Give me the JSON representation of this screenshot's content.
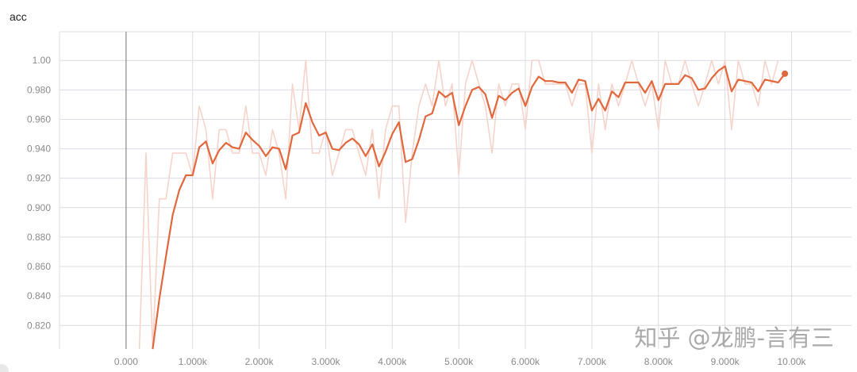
{
  "chart_data": {
    "type": "line",
    "title": "acc",
    "xlabel": "",
    "ylabel": "",
    "xlim": [
      -1000,
      10900
    ],
    "ylim": [
      0.804,
      1.0195
    ],
    "grid": true,
    "legend": "none",
    "x_ticks": [
      0,
      1000,
      2000,
      3000,
      4000,
      5000,
      6000,
      7000,
      8000,
      9000,
      10000
    ],
    "x_tick_labels": [
      "0.000",
      "1.000k",
      "2.000k",
      "3.000k",
      "4.000k",
      "5.000k",
      "6.000k",
      "7.000k",
      "8.000k",
      "9.000k",
      "10.00k"
    ],
    "y_ticks": [
      0.82,
      0.84,
      0.86,
      0.88,
      0.9,
      0.92,
      0.94,
      0.96,
      0.98,
      1.0
    ],
    "y_tick_labels": [
      "0.820",
      "0.840",
      "0.860",
      "0.880",
      "0.900",
      "0.920",
      "0.940",
      "0.960",
      "0.980",
      "1.00"
    ],
    "colors": {
      "smoothed": "#e0683c",
      "raw": "#f6d3cb",
      "grid": "#dcdce4",
      "axis": "#888888"
    },
    "series": [
      {
        "role": "raw",
        "x": [
          200,
          300,
          400,
          500,
          600,
          700,
          800,
          900,
          1000,
          1100,
          1200,
          1300,
          1400,
          1500,
          1600,
          1700,
          1800,
          1900,
          2000,
          2100,
          2200,
          2300,
          2400,
          2500,
          2600,
          2700,
          2800,
          2900,
          3000,
          3100,
          3200,
          3300,
          3400,
          3500,
          3600,
          3700,
          3800,
          3900,
          4000,
          4100,
          4200,
          4300,
          4400,
          4500,
          4600,
          4700,
          4800,
          4900,
          5000,
          5100,
          5200,
          5300,
          5400,
          5500,
          5600,
          5700,
          5800,
          5900,
          6000,
          6100,
          6200,
          6300,
          6400,
          6500,
          6600,
          6700,
          6800,
          6900,
          7000,
          7100,
          7200,
          7300,
          7400,
          7500,
          7600,
          7700,
          7800,
          7900,
          8000,
          8100,
          8200,
          8300,
          8400,
          8500,
          8600,
          8700,
          8800,
          8900,
          9000,
          9100,
          9200,
          9300,
          9400,
          9500,
          9600,
          9700,
          9800
        ],
        "y": [
          0.8,
          0.937,
          0.8,
          0.906,
          0.906,
          0.937,
          0.937,
          0.937,
          0.922,
          0.969,
          0.953,
          0.906,
          0.953,
          0.953,
          0.937,
          0.937,
          0.969,
          0.937,
          0.937,
          0.922,
          0.953,
          0.937,
          0.906,
          0.984,
          0.953,
          1.0,
          0.937,
          0.937,
          0.953,
          0.922,
          0.937,
          0.953,
          0.953,
          0.937,
          0.922,
          0.953,
          0.906,
          0.953,
          0.969,
          0.969,
          0.89,
          0.937,
          0.969,
          0.984,
          0.969,
          1.0,
          0.969,
          0.984,
          0.922,
          0.984,
          1.0,
          0.984,
          0.969,
          0.937,
          0.984,
          0.969,
          0.984,
          0.984,
          0.953,
          1.0,
          1.0,
          0.984,
          0.984,
          0.984,
          0.984,
          0.969,
          0.984,
          0.984,
          0.937,
          0.984,
          0.953,
          0.984,
          0.969,
          0.984,
          1.0,
          0.984,
          0.969,
          0.984,
          0.953,
          1.0,
          0.984,
          0.984,
          1.0,
          0.984,
          0.969,
          0.984,
          1.0,
          0.984,
          1.0,
          0.953,
          1.0,
          0.984,
          0.984,
          0.969,
          1.0,
          0.984,
          1.0
        ]
      },
      {
        "role": "smoothed",
        "x": [
          400,
          500,
          600,
          700,
          800,
          900,
          1000,
          1100,
          1200,
          1300,
          1400,
          1500,
          1600,
          1700,
          1800,
          1900,
          2000,
          2100,
          2200,
          2300,
          2400,
          2500,
          2600,
          2700,
          2800,
          2900,
          3000,
          3100,
          3200,
          3300,
          3400,
          3500,
          3600,
          3700,
          3800,
          3900,
          4000,
          4100,
          4200,
          4300,
          4400,
          4500,
          4600,
          4700,
          4800,
          4900,
          5000,
          5100,
          5200,
          5300,
          5400,
          5500,
          5600,
          5700,
          5800,
          5900,
          6000,
          6100,
          6200,
          6300,
          6400,
          6500,
          6600,
          6700,
          6800,
          6900,
          7000,
          7100,
          7200,
          7300,
          7400,
          7500,
          7600,
          7700,
          7800,
          7900,
          8000,
          8100,
          8200,
          8300,
          8400,
          8500,
          8600,
          8700,
          8800,
          8900,
          9000,
          9100,
          9200,
          9300,
          9400,
          9500,
          9600,
          9700,
          9800,
          9900
        ],
        "y": [
          0.8,
          0.838,
          0.867,
          0.895,
          0.912,
          0.922,
          0.922,
          0.941,
          0.945,
          0.93,
          0.939,
          0.944,
          0.941,
          0.94,
          0.951,
          0.946,
          0.942,
          0.935,
          0.941,
          0.94,
          0.926,
          0.949,
          0.951,
          0.971,
          0.958,
          0.949,
          0.951,
          0.94,
          0.939,
          0.944,
          0.947,
          0.943,
          0.935,
          0.943,
          0.928,
          0.938,
          0.95,
          0.958,
          0.931,
          0.933,
          0.946,
          0.962,
          0.964,
          0.979,
          0.975,
          0.978,
          0.956,
          0.969,
          0.98,
          0.982,
          0.977,
          0.961,
          0.976,
          0.973,
          0.978,
          0.981,
          0.969,
          0.982,
          0.989,
          0.986,
          0.986,
          0.985,
          0.985,
          0.978,
          0.987,
          0.986,
          0.966,
          0.974,
          0.966,
          0.979,
          0.975,
          0.985,
          0.985,
          0.985,
          0.978,
          0.986,
          0.973,
          0.984,
          0.984,
          0.984,
          0.99,
          0.988,
          0.98,
          0.981,
          0.988,
          0.993,
          0.996,
          0.979,
          0.987,
          0.986,
          0.985,
          0.979,
          0.987,
          0.986,
          0.985,
          0.991
        ]
      }
    ]
  },
  "watermark": "知乎 @龙鹏-言有三"
}
